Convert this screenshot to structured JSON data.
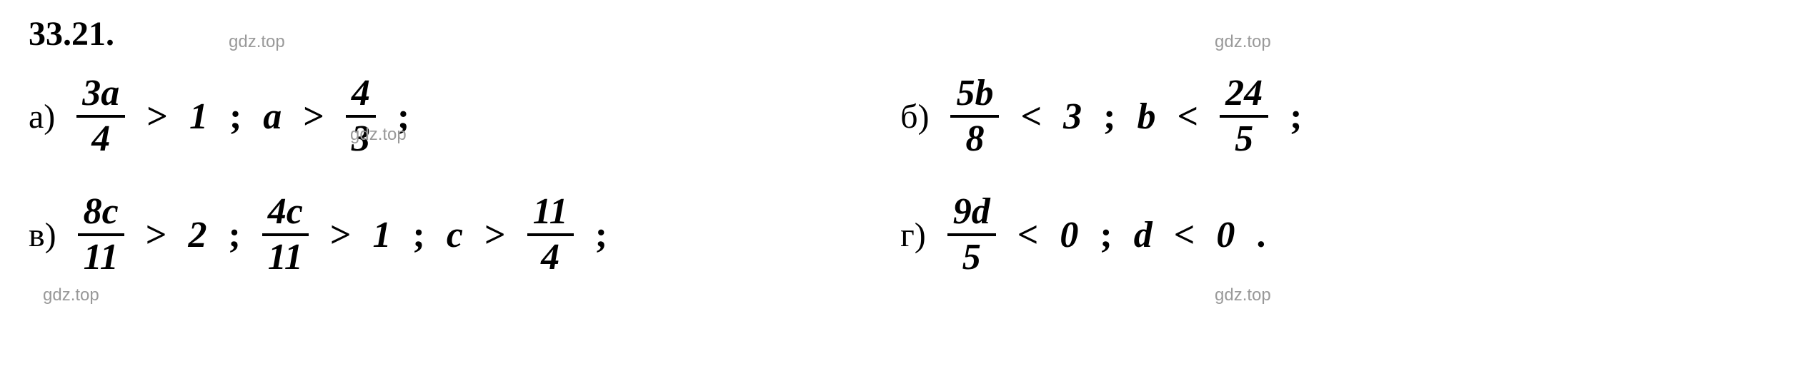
{
  "problem_number": "33.21.",
  "watermark_text": "gdz.top",
  "items": {
    "a": {
      "label": "а)",
      "frac1_num": "3a",
      "frac1_den": "4",
      "op1": ">",
      "val1": "1",
      "sep1": ";",
      "var1": "a",
      "op2": ">",
      "frac2_num": "4",
      "frac2_den": "3",
      "end": ";"
    },
    "b": {
      "label": "б)",
      "frac1_num": "5b",
      "frac1_den": "8",
      "op1": "<",
      "val1": "3",
      "sep1": ";",
      "var1": "b",
      "op2": "<",
      "frac2_num": "24",
      "frac2_den": "5",
      "end": ";"
    },
    "v": {
      "label": "в)",
      "frac1_num": "8c",
      "frac1_den": "11",
      "op1": ">",
      "val1": "2",
      "sep1": ";",
      "frac2_num": "4c",
      "frac2_den": "11",
      "op2": ">",
      "val2": "1",
      "sep2": ";",
      "var1": "c",
      "op3": ">",
      "frac3_num": "11",
      "frac3_den": "4",
      "end": ";"
    },
    "g": {
      "label": "г)",
      "frac1_num": "9d",
      "frac1_den": "5",
      "op1": "<",
      "val1": "0",
      "sep1": ";",
      "var1": "d",
      "op2": "<",
      "val2": "0",
      "end": "."
    }
  },
  "colors": {
    "text": "#000000",
    "background": "#ffffff",
    "watermark": "#999999"
  },
  "typography": {
    "main_fontsize": 52,
    "label_fontsize": 48,
    "number_fontsize": 48,
    "watermark_fontsize": 24,
    "font_family": "Times New Roman"
  }
}
